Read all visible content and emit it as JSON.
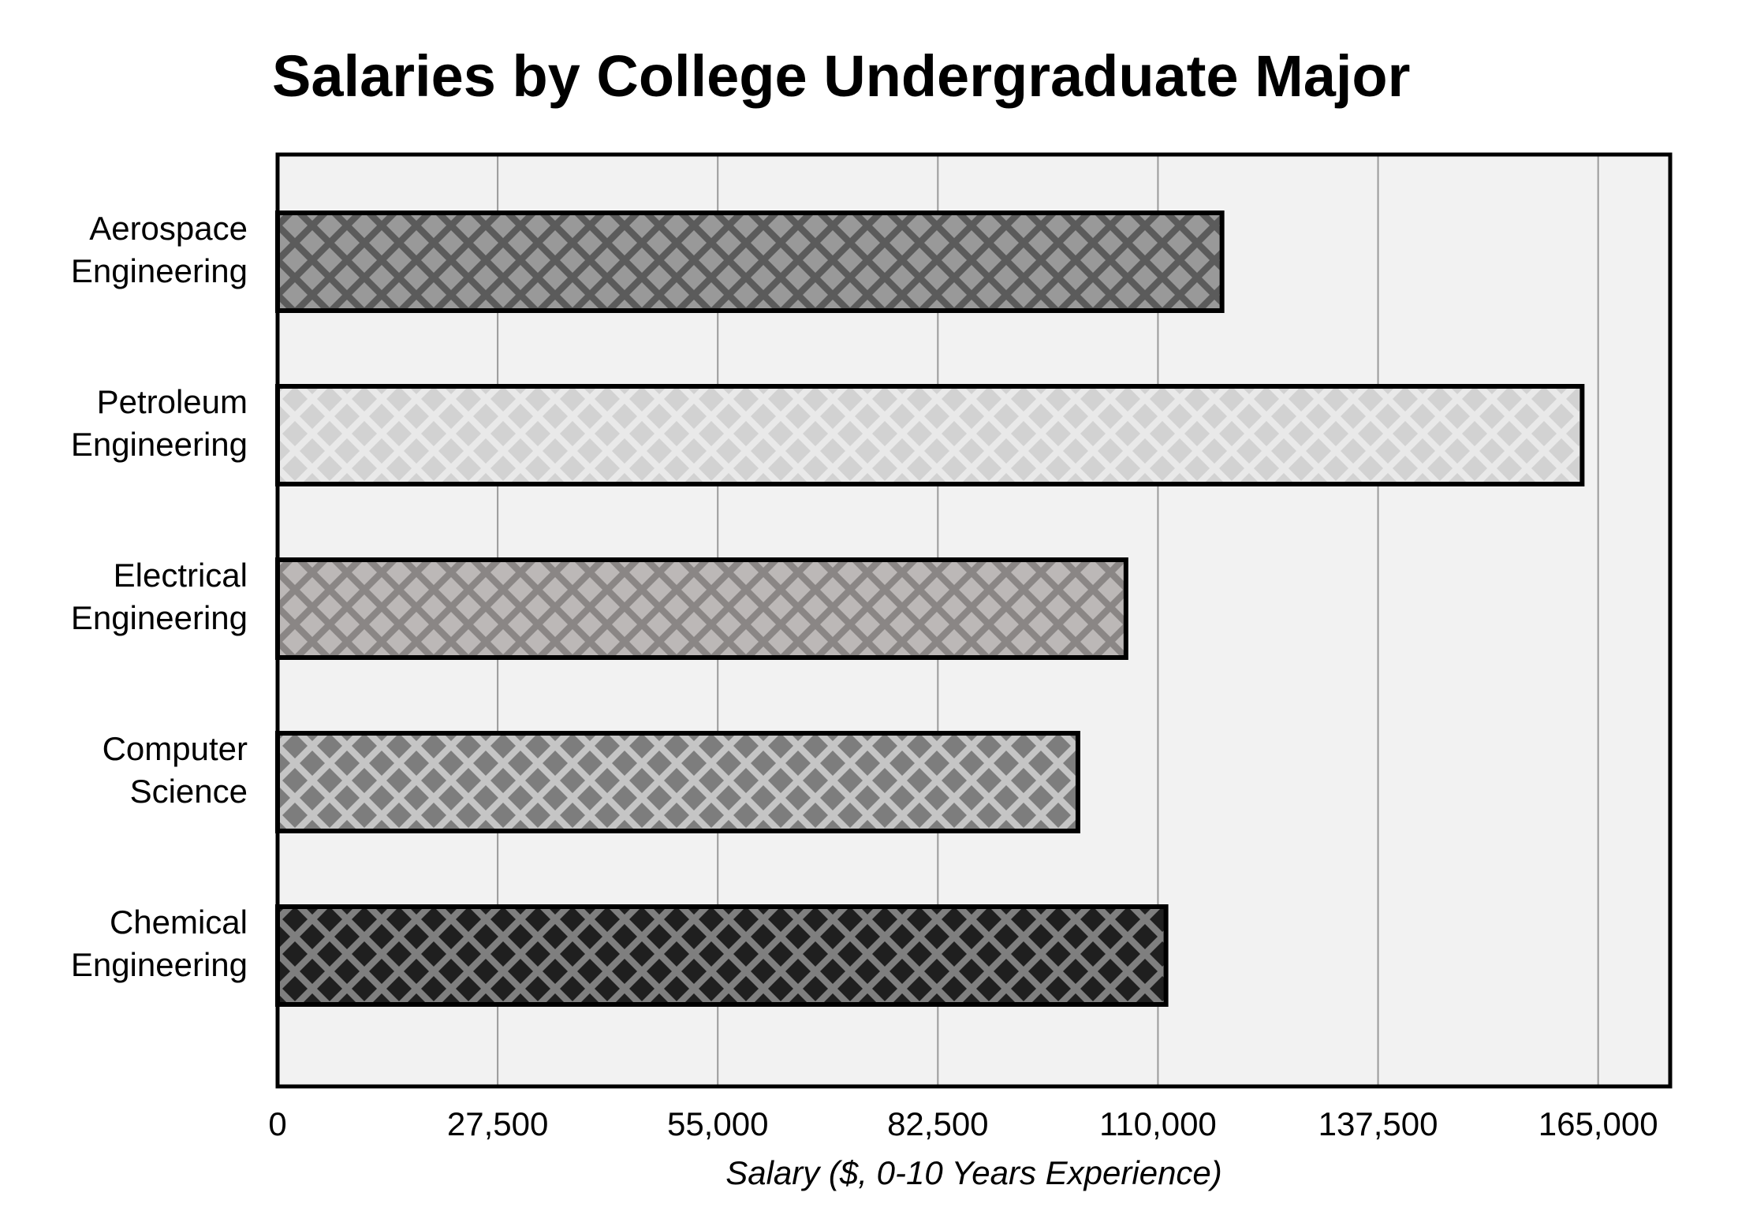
{
  "chart_data": {
    "type": "bar",
    "orientation": "horizontal",
    "title": "Salaries by College Undergraduate Major",
    "xlabel": "Salary ($, 0-10 Years Experience)",
    "ylabel": "",
    "xlim": [
      0,
      174000
    ],
    "xticks": [
      0,
      27500,
      55000,
      82500,
      110000,
      137500,
      165000
    ],
    "xtick_labels": [
      "0",
      "27,500",
      "55,000",
      "82,500",
      "110,000",
      "137,500",
      "165,000"
    ],
    "grid": "vertical",
    "legend": "none",
    "categories": [
      {
        "lines": [
          "Aerospace",
          "Engineering"
        ]
      },
      {
        "lines": [
          "Petroleum",
          "Engineering"
        ]
      },
      {
        "lines": [
          "Electrical",
          "Engineering"
        ]
      },
      {
        "lines": [
          "Computer",
          "Science"
        ]
      },
      {
        "lines": [
          "Chemical",
          "Engineering"
        ]
      }
    ],
    "values": [
      118000,
      163000,
      106000,
      100000,
      111000
    ],
    "bar_colors": [
      {
        "fill": "#5b5b5b",
        "pattern": "#999999"
      },
      {
        "fill": "#e9e9e9",
        "pattern": "#d2d2d2"
      },
      {
        "fill": "#8a8685",
        "pattern": "#bcb8b7"
      },
      {
        "fill": "#c5c5c5",
        "pattern": "#7d7d7d"
      },
      {
        "fill": "#7f7f7f",
        "pattern": "#1f1f1f"
      }
    ],
    "plot_background": "#f2f2f2",
    "grid_color": "#9a9a9a"
  }
}
